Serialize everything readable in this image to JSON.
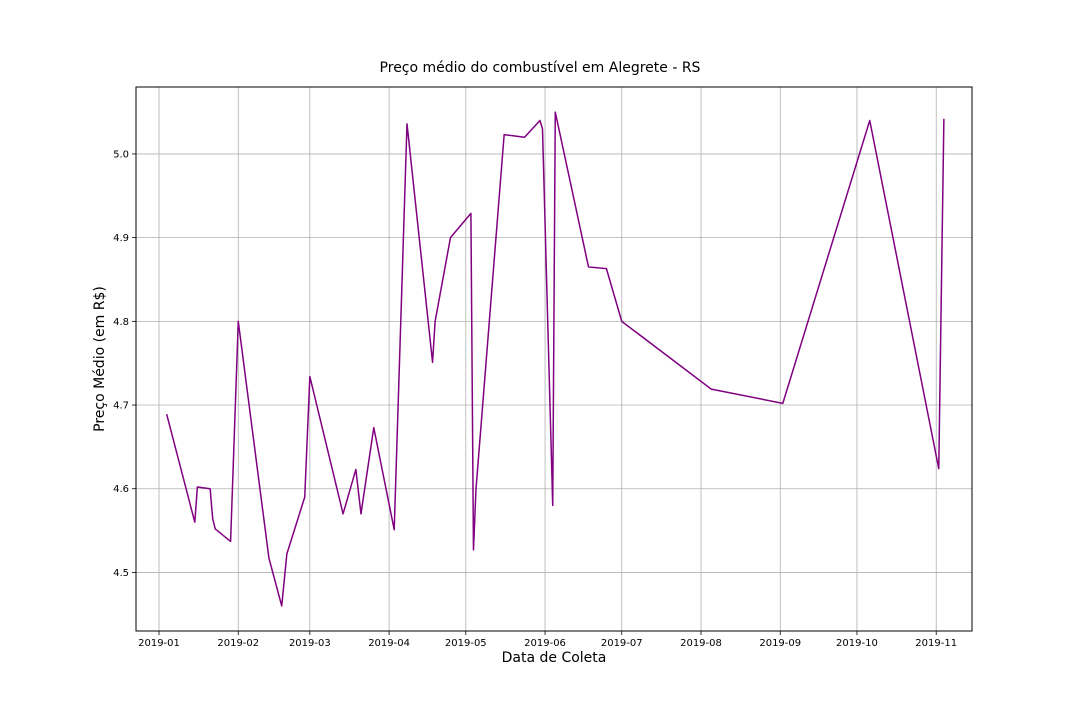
{
  "chart_data": {
    "type": "line",
    "title": "Preço médio do combustível em Alegrete - RS",
    "xlabel": "Data de Coleta",
    "ylabel": "Preço Médio (em R$)",
    "x_axis_type": "date",
    "xlim": [
      "2018-12-23",
      "2019-11-15"
    ],
    "ylim": [
      4.43,
      5.08
    ],
    "x_ticks": [
      "2019-01-01",
      "2019-02-01",
      "2019-03-01",
      "2019-04-01",
      "2019-05-01",
      "2019-06-01",
      "2019-07-01",
      "2019-08-01",
      "2019-09-01",
      "2019-10-01",
      "2019-11-01"
    ],
    "x_tick_labels": [
      "2019-01",
      "2019-02",
      "2019-03",
      "2019-04",
      "2019-05",
      "2019-06",
      "2019-07",
      "2019-08",
      "2019-09",
      "2019-10",
      "2019-11"
    ],
    "y_ticks": [
      4.5,
      4.6,
      4.7,
      4.8,
      4.9,
      5.0
    ],
    "y_tick_labels": [
      "4.5",
      "4.6",
      "4.7",
      "4.8",
      "4.9",
      "5.0"
    ],
    "grid": true,
    "series": [
      {
        "color": "#800080",
        "x": [
          "2019-01-04",
          "2019-01-15",
          "2019-01-16",
          "2019-01-21",
          "2019-01-22",
          "2019-01-23",
          "2019-01-29",
          "2019-02-01",
          "2019-02-13",
          "2019-02-18",
          "2019-02-20",
          "2019-02-27",
          "2019-03-01",
          "2019-03-14",
          "2019-03-19",
          "2019-03-21",
          "2019-03-26",
          "2019-04-03",
          "2019-04-08",
          "2019-04-18",
          "2019-04-19",
          "2019-04-25",
          "2019-05-03",
          "2019-05-04",
          "2019-05-05",
          "2019-05-16",
          "2019-05-24",
          "2019-05-30",
          "2019-05-31",
          "2019-06-04",
          "2019-06-05",
          "2019-06-18",
          "2019-06-25",
          "2019-07-01",
          "2019-08-05",
          "2019-09-02",
          "2019-10-06",
          "2019-11-02",
          "2019-11-04"
        ],
        "values": [
          4.689,
          4.56,
          4.602,
          4.6,
          4.564,
          4.552,
          4.537,
          4.8,
          4.517,
          4.46,
          4.522,
          4.59,
          4.734,
          4.57,
          4.623,
          4.57,
          4.673,
          4.551,
          5.036,
          4.751,
          4.8,
          4.9,
          4.929,
          4.527,
          4.6,
          5.023,
          5.02,
          5.04,
          5.03,
          4.58,
          5.05,
          4.865,
          4.863,
          4.8,
          4.719,
          4.702,
          5.04,
          4.624,
          5.042
        ]
      }
    ]
  }
}
